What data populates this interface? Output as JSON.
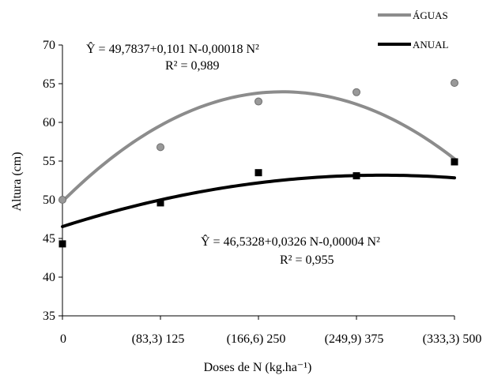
{
  "chart_data": {
    "type": "scatter",
    "xlabel": "Doses de N (kg.ha⁻¹)",
    "ylabel": "Altura (cm)",
    "ylim": [
      35,
      70
    ],
    "yticks": [
      "35",
      "40",
      "45",
      "50",
      "55",
      "60",
      "65",
      "70"
    ],
    "xticks": [
      "0",
      "(83,3) 125",
      "(166,6) 250",
      "(249,9) 375",
      "(333,3) 500"
    ],
    "legend_position": "top-right",
    "grid": false,
    "series": [
      {
        "name": "ÁGUAS",
        "color": "#8c8c8c",
        "marker": "circle",
        "x": [
          0,
          125,
          250,
          375,
          500
        ],
        "values": [
          50.0,
          56.8,
          62.7,
          63.9,
          65.1
        ],
        "fit": {
          "a": 49.7837,
          "b": 0.101,
          "c": -0.00018
        },
        "equation": "Ŷ = 49,7837+0,101 N-0,00018 N²",
        "r2": "R² = 0,989"
      },
      {
        "name": "ANUAL",
        "color": "#000000",
        "marker": "square",
        "x": [
          0,
          125,
          250,
          375,
          500
        ],
        "values": [
          44.3,
          49.6,
          53.5,
          53.1,
          54.9
        ],
        "fit": {
          "a": 46.5328,
          "b": 0.0326,
          "c": -4e-05
        },
        "equation": "Ŷ = 46,5328+0,0326 N-0,00004 N²",
        "r2": "R² = 0,955"
      }
    ]
  }
}
